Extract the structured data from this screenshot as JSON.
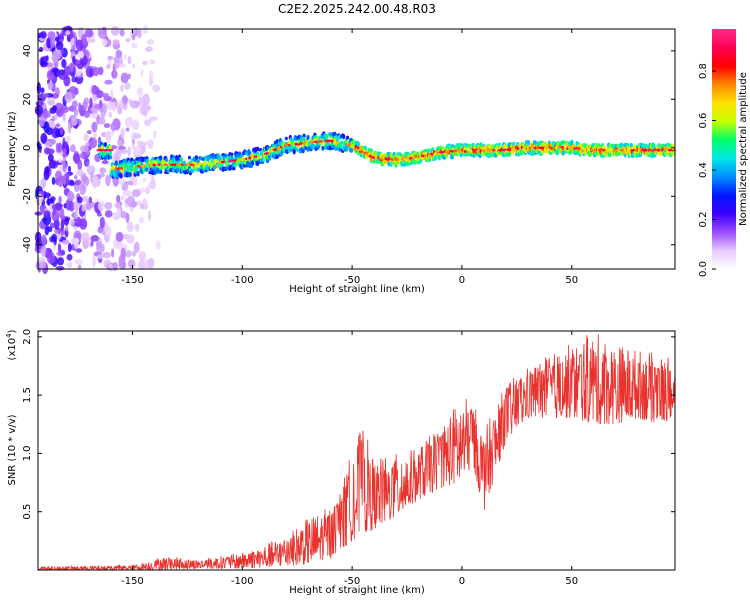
{
  "title": "C2E2.2025.242.00.48.R03",
  "chart_data": [
    {
      "type": "heatmap",
      "xlabel": "Height of straight line (km)",
      "ylabel": "Frequency (Hz)",
      "xlim": [
        -193,
        97
      ],
      "ylim": [
        -50,
        49
      ],
      "xticks": [
        -150,
        -100,
        -50,
        0,
        50
      ],
      "yticks": [
        -40,
        -20,
        0,
        20,
        40
      ],
      "colorbar": {
        "label": "Normalized spectral amplitude",
        "range": [
          0,
          0.97
        ],
        "ticks": [
          0.0,
          0.2,
          0.4,
          0.6,
          0.8
        ],
        "tick_labels": [
          "0.0",
          "0.2",
          "0.4",
          "0.6",
          "0.8"
        ],
        "colors": [
          "#ffffff",
          "#e6c8ff",
          "#9a4cff",
          "#3d00ff",
          "#0018ff",
          "#0090ff",
          "#00e6e6",
          "#00ff66",
          "#c8ff00",
          "#ffe000",
          "#ff8800",
          "#ff0000",
          "#ff0055",
          "#ff2d8a"
        ]
      },
      "ridge_center_hz": [
        {
          "x": -160,
          "y": -9
        },
        {
          "x": -150,
          "y": -8
        },
        {
          "x": -140,
          "y": -7
        },
        {
          "x": -120,
          "y": -7
        },
        {
          "x": -100,
          "y": -5
        },
        {
          "x": -90,
          "y": -3
        },
        {
          "x": -80,
          "y": 1
        },
        {
          "x": -70,
          "y": 2
        },
        {
          "x": -60,
          "y": 3
        },
        {
          "x": -50,
          "y": 1
        },
        {
          "x": -40,
          "y": -4
        },
        {
          "x": -30,
          "y": -5
        },
        {
          "x": -20,
          "y": -4
        },
        {
          "x": -10,
          "y": -2
        },
        {
          "x": 0,
          "y": -1
        },
        {
          "x": 10,
          "y": -1
        },
        {
          "x": 20,
          "y": -1
        },
        {
          "x": 30,
          "y": 0
        },
        {
          "x": 40,
          "y": 0
        },
        {
          "x": 50,
          "y": 0
        },
        {
          "x": 60,
          "y": -1
        },
        {
          "x": 70,
          "y": -1
        },
        {
          "x": 80,
          "y": -1
        },
        {
          "x": 95,
          "y": -1
        }
      ]
    },
    {
      "type": "line",
      "xlabel": "Height of straight line (km)",
      "ylabel": "SNR (10 * v/v)",
      "yscale_label": "(x10",
      "yscale_exp": "4",
      "yscale_close": ")",
      "xlim": [
        -193,
        97
      ],
      "ylim": [
        0,
        2.05
      ],
      "xticks": [
        -150,
        -100,
        -50,
        0,
        50
      ],
      "yticks": [
        0.5,
        1.0,
        1.5,
        2.0
      ],
      "ytick_labels": [
        "0.5",
        "1.0",
        "1.5",
        "2.0"
      ],
      "series": [
        {
          "color": "#e8322d",
          "envelope": [
            {
              "x": -193,
              "low": 0.0,
              "high": 0.03
            },
            {
              "x": -150,
              "low": 0.0,
              "high": 0.04
            },
            {
              "x": -135,
              "low": 0.0,
              "high": 0.12
            },
            {
              "x": -120,
              "low": 0.01,
              "high": 0.09
            },
            {
              "x": -100,
              "low": 0.01,
              "high": 0.15
            },
            {
              "x": -90,
              "low": 0.02,
              "high": 0.22
            },
            {
              "x": -80,
              "low": 0.03,
              "high": 0.3
            },
            {
              "x": -70,
              "low": 0.05,
              "high": 0.45
            },
            {
              "x": -60,
              "low": 0.1,
              "high": 0.55
            },
            {
              "x": -55,
              "low": 0.15,
              "high": 0.7
            },
            {
              "x": -50,
              "low": 0.25,
              "high": 1.05
            },
            {
              "x": -45,
              "low": 0.3,
              "high": 1.25
            },
            {
              "x": -40,
              "low": 0.35,
              "high": 0.95
            },
            {
              "x": -30,
              "low": 0.45,
              "high": 1.0
            },
            {
              "x": -20,
              "low": 0.6,
              "high": 1.05
            },
            {
              "x": -10,
              "low": 0.7,
              "high": 1.25
            },
            {
              "x": 0,
              "low": 0.75,
              "high": 1.5
            },
            {
              "x": 5,
              "low": 0.9,
              "high": 1.45
            },
            {
              "x": 10,
              "low": 0.5,
              "high": 1.2
            },
            {
              "x": 20,
              "low": 1.1,
              "high": 1.6
            },
            {
              "x": 30,
              "low": 1.3,
              "high": 1.75
            },
            {
              "x": 40,
              "low": 1.3,
              "high": 1.85
            },
            {
              "x": 50,
              "low": 1.3,
              "high": 1.95
            },
            {
              "x": 60,
              "low": 1.25,
              "high": 2.05
            },
            {
              "x": 70,
              "low": 1.25,
              "high": 1.95
            },
            {
              "x": 80,
              "low": 1.3,
              "high": 1.9
            },
            {
              "x": 90,
              "low": 1.25,
              "high": 1.85
            },
            {
              "x": 97,
              "low": 1.3,
              "high": 1.8
            }
          ]
        }
      ]
    }
  ]
}
